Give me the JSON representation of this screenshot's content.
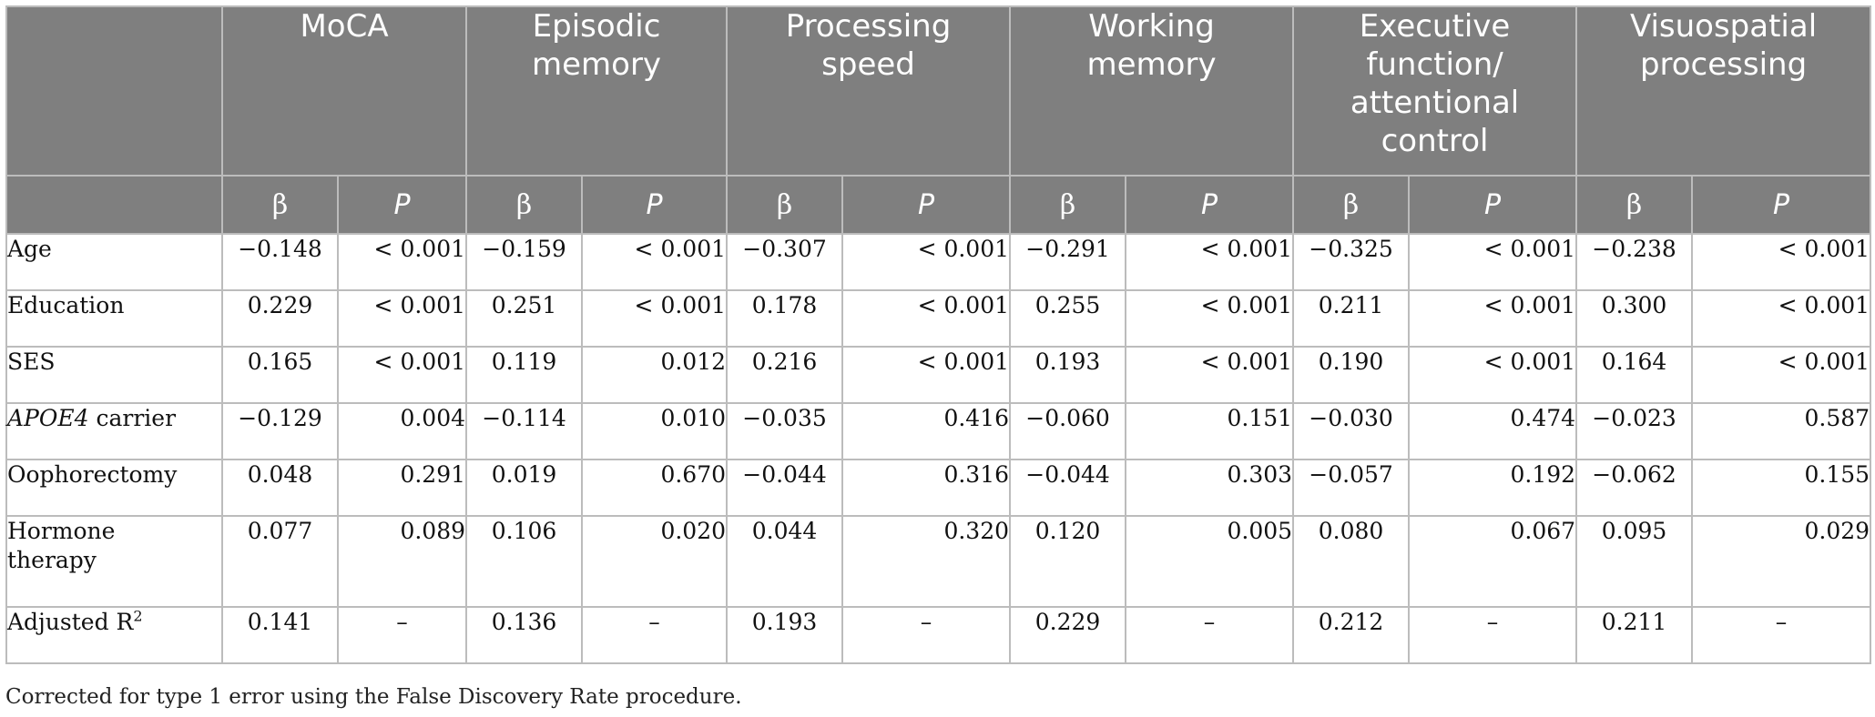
{
  "table": {
    "groups": [
      "MoCA",
      "Episodic memory",
      "Processing speed",
      "Working memory",
      "Executive function/ attentional control",
      "Visuospatial processing"
    ],
    "subheaders": {
      "beta": "β",
      "p": "P"
    },
    "rows": [
      {
        "label": "Age",
        "label_italic": false,
        "cells": [
          "−0.148",
          "< 0.001",
          "−0.159",
          "< 0.001",
          "−0.307",
          "< 0.001",
          "−0.291",
          "< 0.001",
          "−0.325",
          "< 0.001",
          "−0.238",
          "< 0.001"
        ]
      },
      {
        "label": "Education",
        "label_italic": false,
        "cells": [
          "0.229",
          "< 0.001",
          "0.251",
          "< 0.001",
          "0.178",
          "< 0.001",
          "0.255",
          "< 0.001",
          "0.211",
          "< 0.001",
          "0.300",
          "< 0.001"
        ]
      },
      {
        "label": "SES",
        "label_italic": false,
        "cells": [
          "0.165",
          "< 0.001",
          "0.119",
          "0.012",
          "0.216",
          "< 0.001",
          "0.193",
          "< 0.001",
          "0.190",
          "< 0.001",
          "0.164",
          "< 0.001"
        ]
      },
      {
        "label_italic_part": "APOE4",
        "label": " carrier",
        "label_italic": true,
        "cells": [
          "−0.129",
          "0.004",
          "−0.114",
          "0.010",
          "−0.035",
          "0.416",
          "−0.060",
          "0.151",
          "−0.030",
          "0.474",
          "−0.023",
          "0.587"
        ]
      },
      {
        "label": "Oophorectomy",
        "label_italic": false,
        "cells": [
          "0.048",
          "0.291",
          "0.019",
          "0.670",
          "−0.044",
          "0.316",
          "−0.044",
          "0.303",
          "−0.057",
          "0.192",
          "−0.062",
          "0.155"
        ]
      },
      {
        "label": "Hormone therapy",
        "label_italic": false,
        "tall": true,
        "cells": [
          "0.077",
          "0.089",
          "0.106",
          "0.020",
          "0.044",
          "0.320",
          "0.120",
          "0.005",
          "0.080",
          "0.067",
          "0.095",
          "0.029"
        ]
      },
      {
        "label": "Adjusted R",
        "label_sup": "2",
        "label_italic": false,
        "cells": [
          "0.141",
          "–",
          "0.136",
          "–",
          "0.193",
          "–",
          "0.229",
          "–",
          "0.212",
          "–",
          "0.211",
          "–"
        ]
      }
    ]
  },
  "footnote": "Corrected for type 1 error using the False Discovery Rate procedure."
}
